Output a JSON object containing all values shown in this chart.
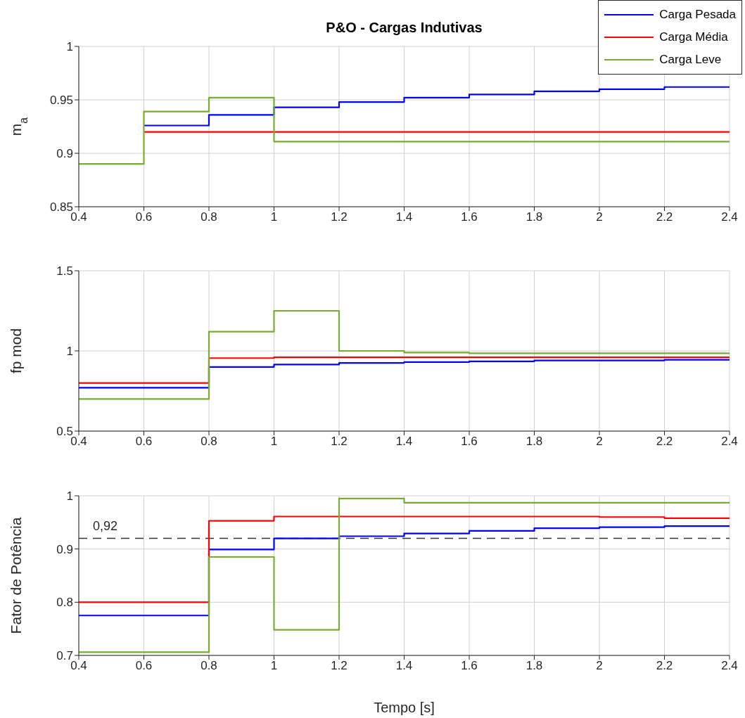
{
  "chart_data": [
    {
      "type": "step",
      "title": "P&O - Cargas Indutivas",
      "ylabel": "m$_{a}$",
      "legend": "top right",
      "grid": true,
      "xlim": [
        0.4,
        2.4
      ],
      "xticks": [
        0.4,
        0.6,
        0.8,
        1,
        1.2,
        1.4,
        1.6,
        1.8,
        2,
        2.2,
        2.4
      ],
      "ylim": [
        0.85,
        1
      ],
      "yticks": [
        0.85,
        0.9,
        0.95,
        1
      ],
      "x": [
        0.4,
        0.6,
        0.8,
        1,
        1.2,
        1.4,
        1.6,
        1.8,
        2,
        2.2,
        2.4
      ],
      "series": [
        {
          "name": "Carga Pesada",
          "color": "#0000ff",
          "values": [
            null,
            0.926,
            0.936,
            0.943,
            0.948,
            0.952,
            0.955,
            0.958,
            0.96,
            0.962,
            0.962
          ]
        },
        {
          "name": "Carga Média",
          "color": "#ff0000",
          "values": [
            null,
            0.92,
            0.92,
            0.92,
            0.92,
            0.92,
            0.92,
            0.92,
            0.92,
            0.92,
            0.92
          ]
        },
        {
          "name": "Carga Leve",
          "color": "#77ac30",
          "values": [
            0.89,
            0.939,
            0.952,
            0.911,
            0.911,
            0.911,
            0.911,
            0.911,
            0.911,
            0.911,
            0.911
          ]
        }
      ]
    },
    {
      "type": "step",
      "ylabel": "fp mod",
      "grid": true,
      "xlim": [
        0.4,
        2.4
      ],
      "xticks": [
        0.4,
        0.6,
        0.8,
        1,
        1.2,
        1.4,
        1.6,
        1.8,
        2,
        2.2,
        2.4
      ],
      "ylim": [
        0.5,
        1.5
      ],
      "yticks": [
        0.5,
        1,
        1.5
      ],
      "x": [
        0.4,
        0.6,
        0.8,
        1,
        1.2,
        1.4,
        1.6,
        1.8,
        2,
        2.2,
        2.4
      ],
      "series": [
        {
          "color": "#0000ff",
          "values": [
            0.77,
            0.77,
            0.9,
            0.915,
            0.925,
            0.93,
            0.935,
            0.94,
            0.94,
            0.945,
            0.945
          ]
        },
        {
          "color": "#ff0000",
          "values": [
            0.8,
            0.8,
            0.955,
            0.96,
            0.96,
            0.96,
            0.96,
            0.96,
            0.96,
            0.96,
            0.96
          ]
        },
        {
          "color": "#77ac30",
          "values": [
            0.7,
            0.7,
            1.12,
            1.25,
            1.0,
            0.99,
            0.985,
            0.985,
            0.985,
            0.985,
            0.985
          ]
        }
      ]
    },
    {
      "type": "step",
      "ylabel": "Fator de Potência",
      "xlabel": "Tempo [s]",
      "grid": true,
      "xlim": [
        0.4,
        2.4
      ],
      "xticks": [
        0.4,
        0.6,
        0.8,
        1,
        1.2,
        1.4,
        1.6,
        1.8,
        2,
        2.2,
        2.4
      ],
      "ylim": [
        0.7,
        1
      ],
      "yticks": [
        0.7,
        0.8,
        0.9,
        1
      ],
      "x": [
        0.4,
        0.6,
        0.8,
        1,
        1.2,
        1.4,
        1.6,
        1.8,
        2,
        2.2,
        2.4
      ],
      "series": [
        {
          "color": "#0000ff",
          "values": [
            0.775,
            0.775,
            0.899,
            0.92,
            0.924,
            0.929,
            0.934,
            0.939,
            0.941,
            0.943,
            0.943
          ]
        },
        {
          "color": "#ff0000",
          "values": [
            0.8,
            0.8,
            0.953,
            0.961,
            0.961,
            0.961,
            0.961,
            0.961,
            0.96,
            0.958,
            0.958
          ]
        },
        {
          "color": "#77ac30",
          "values": [
            0.706,
            0.706,
            0.885,
            0.748,
            0.995,
            0.987,
            0.987,
            0.987,
            0.987,
            0.987,
            0.987
          ]
        }
      ],
      "ref_lines": [
        {
          "axis": "y",
          "value": 0.92,
          "label": "0,92",
          "color": "#333333",
          "line_style": "dashed"
        }
      ]
    }
  ]
}
